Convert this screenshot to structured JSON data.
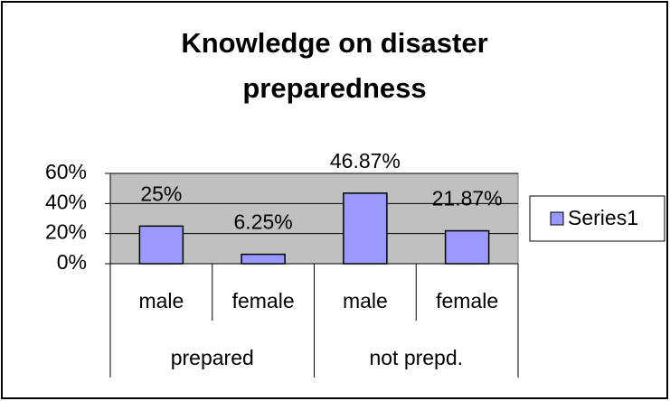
{
  "chart_data": {
    "type": "bar",
    "title": [
      "Knowledge on disaster",
      "preparedness"
    ],
    "categories": [
      "male",
      "female",
      "male",
      "female"
    ],
    "category_groups": [
      {
        "label": "prepared",
        "span": 2
      },
      {
        "label": "not prepd.",
        "span": 2
      }
    ],
    "series": [
      {
        "name": "Series1",
        "color": "#9999ff",
        "values": [
          25,
          6.25,
          46.87,
          21.87
        ],
        "value_labels": [
          "25%",
          "6.25%",
          "46.87%",
          "21.87%"
        ]
      }
    ],
    "ylim": [
      0,
      60
    ],
    "yticks": [
      {
        "value": 0,
        "label": "0%"
      },
      {
        "value": 20,
        "label": "20%"
      },
      {
        "value": 40,
        "label": "40%"
      },
      {
        "value": 60,
        "label": "60%"
      }
    ],
    "grid": true,
    "legend": "right",
    "plot_background": "#c0c0c0"
  }
}
